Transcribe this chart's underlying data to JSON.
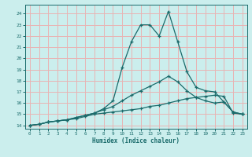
{
  "xlabel": "Humidex (Indice chaleur)",
  "bg_color": "#cbeeed",
  "grid_color": "#e8b4b4",
  "line_color": "#1a6b6b",
  "xlim": [
    -0.5,
    23.5
  ],
  "ylim": [
    13.7,
    24.8
  ],
  "yticks": [
    14,
    15,
    16,
    17,
    18,
    19,
    20,
    21,
    22,
    23,
    24
  ],
  "xticks": [
    0,
    1,
    2,
    3,
    4,
    5,
    6,
    7,
    8,
    9,
    10,
    11,
    12,
    13,
    14,
    15,
    16,
    17,
    18,
    19,
    20,
    21,
    22,
    23
  ],
  "series_main_x": [
    0,
    1,
    2,
    3,
    4,
    5,
    6,
    7,
    8,
    9,
    10,
    11,
    12,
    13,
    14,
    15,
    16,
    17,
    18,
    19,
    20,
    21,
    22,
    23
  ],
  "series_main_y": [
    14,
    14.1,
    14.3,
    14.4,
    14.5,
    14.7,
    14.9,
    15.1,
    15.5,
    16.2,
    19.2,
    21.5,
    23.0,
    23.0,
    22.0,
    24.2,
    21.5,
    18.8,
    17.4,
    17.1,
    17.0,
    16.1,
    15.2,
    15.0
  ],
  "series_mid_x": [
    0,
    1,
    2,
    3,
    4,
    5,
    6,
    7,
    8,
    9,
    10,
    11,
    12,
    13,
    14,
    15,
    16,
    17,
    18,
    19,
    20,
    21,
    22,
    23
  ],
  "series_mid_y": [
    14,
    14.1,
    14.3,
    14.4,
    14.5,
    14.7,
    14.9,
    15.1,
    15.4,
    15.7,
    16.2,
    16.7,
    17.1,
    17.5,
    17.9,
    18.4,
    17.9,
    17.1,
    16.5,
    16.2,
    16.0,
    16.1,
    15.2,
    15.0
  ],
  "series_flat_x": [
    0,
    1,
    2,
    3,
    4,
    5,
    6,
    7,
    8,
    9,
    10,
    11,
    12,
    13,
    14,
    15,
    16,
    17,
    18,
    19,
    20,
    21,
    22,
    23
  ],
  "series_flat_y": [
    14,
    14.1,
    14.3,
    14.4,
    14.5,
    14.6,
    14.8,
    15.0,
    15.1,
    15.2,
    15.3,
    15.4,
    15.5,
    15.7,
    15.8,
    16.0,
    16.2,
    16.4,
    16.5,
    16.6,
    16.7,
    16.6,
    15.1,
    15.0
  ]
}
